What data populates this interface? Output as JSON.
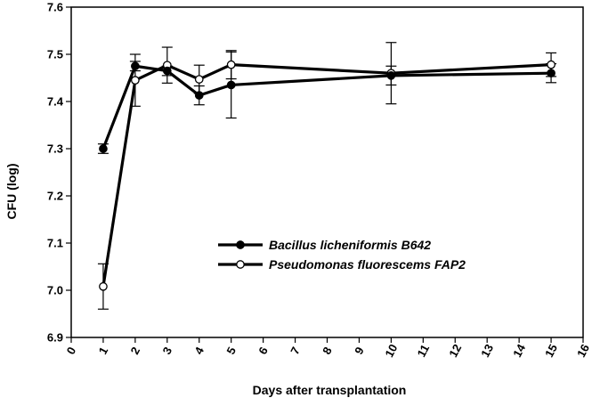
{
  "chart_data": {
    "type": "line",
    "title": "",
    "xlabel": "Days after transplantation",
    "ylabel": "CFU (log)",
    "xlim": [
      0,
      16
    ],
    "ylim": [
      6.9,
      7.6
    ],
    "x_ticks": [
      0,
      1,
      2,
      3,
      4,
      5,
      6,
      7,
      8,
      9,
      10,
      11,
      12,
      13,
      14,
      15,
      16
    ],
    "y_ticks": [
      "6.9",
      "7.0",
      "7.1",
      "7.2",
      "7.3",
      "7.4",
      "7.5",
      "7.6"
    ],
    "grid": false,
    "legend_position": "center-right",
    "x": [
      1,
      2,
      3,
      4,
      5,
      10,
      15
    ],
    "series": [
      {
        "name": "Bacillus licheniformis B642",
        "marker": "filled-circle",
        "color": "#000000",
        "values": [
          7.3,
          7.475,
          7.465,
          7.413,
          7.435,
          7.455,
          7.46
        ],
        "errors": [
          0.01,
          0.01,
          0.01,
          0.02,
          0.07,
          0.02,
          0.02
        ]
      },
      {
        "name": "Pseudomonas fluorescems FAP2",
        "marker": "open-circle",
        "color": "#000000",
        "values": [
          7.008,
          7.445,
          7.477,
          7.447,
          7.478,
          7.46,
          7.478
        ],
        "errors": [
          0.048,
          0.055,
          0.038,
          0.03,
          0.03,
          0.065,
          0.025
        ]
      }
    ]
  }
}
